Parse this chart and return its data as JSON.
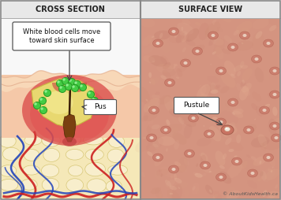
{
  "title_left": "CROSS SECTION",
  "title_right": "SURFACE VIEW",
  "copyright": "© AboutKidsHealth.ca",
  "label_wbc": "White blood cells move\ntoward skin surface",
  "label_pus": "Pus",
  "label_pustule": "Pustule",
  "header_bg": "#e8e8e8",
  "left_panel_bg": "#f5f5f5",
  "skin_peach": "#f5c8a8",
  "skin_pink": "#f0b090",
  "skin_outer": "#f8dcc8",
  "skin_deep": "#f5e8c8",
  "fat_yellow": "#f5e8b8",
  "fat_border": "#e0cc80",
  "infl_red1": "#d84040",
  "infl_red2": "#e05050",
  "pus_yellow": "#e8d878",
  "pus_light": "#f0e898",
  "wbc_green": "#44cc44",
  "wbc_edge": "#229922",
  "vessel_red": "#cc2020",
  "vessel_blue": "#2244bb",
  "hair_brown": "#6b3a10",
  "hair_dark": "#4a2a08",
  "annotation_bg": "#ffffff",
  "annotation_border": "#555555",
  "title_color": "#222222",
  "outer_border": "#888888",
  "right_skin_base": "#d4917a",
  "right_skin_light": "#e8b090",
  "right_skin_mid": "#c88070"
}
